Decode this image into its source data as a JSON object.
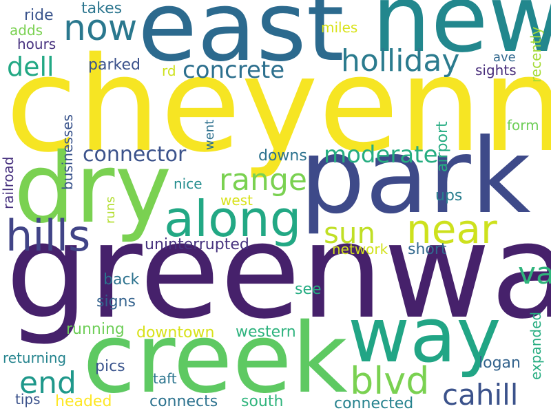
{
  "words": [
    {
      "text": "greenway",
      "color": "#46216b"
    },
    {
      "text": "cheyenne",
      "color": "#f6e523"
    },
    {
      "text": "park",
      "color": "#3e4a89"
    },
    {
      "text": "creek",
      "color": "#5ec962"
    },
    {
      "text": "east",
      "color": "#2c6a8e"
    },
    {
      "text": "new",
      "color": "#22878d"
    },
    {
      "text": "dry",
      "color": "#7ad151"
    },
    {
      "text": "way",
      "color": "#21a585"
    },
    {
      "text": "along",
      "color": "#22a884"
    },
    {
      "text": "hills",
      "color": "#414487"
    },
    {
      "text": "near",
      "color": "#cde11d"
    },
    {
      "text": "blvd",
      "color": "#7ad151"
    },
    {
      "text": "cahill",
      "color": "#3b528b"
    },
    {
      "text": "now",
      "color": "#2a788e"
    },
    {
      "text": "holliday",
      "color": "#2b7b8e"
    },
    {
      "text": "valley",
      "color": "#2fb47c"
    },
    {
      "text": "end",
      "color": "#1f988b"
    },
    {
      "text": "range",
      "color": "#7ad151"
    },
    {
      "text": "sun",
      "color": "#c0df25"
    },
    {
      "text": "concrete",
      "color": "#2d708e"
    },
    {
      "text": "moderate",
      "color": "#26ad81"
    },
    {
      "text": "dell",
      "color": "#22a884"
    },
    {
      "text": "connector",
      "color": "#3b528b"
    },
    {
      "text": "airport",
      "color": "#25ac82"
    },
    {
      "text": "expanded",
      "color": "#27ad81"
    },
    {
      "text": "recently",
      "color": "#a5db36"
    },
    {
      "text": "miles",
      "color": "#d8e219"
    },
    {
      "text": "ride",
      "color": "#3a548c"
    },
    {
      "text": "takes",
      "color": "#2b758e"
    },
    {
      "text": "adds",
      "color": "#7ad151"
    },
    {
      "text": "hours",
      "color": "#46307e"
    },
    {
      "text": "parked",
      "color": "#3b528b"
    },
    {
      "text": "rd",
      "color": "#cde11d"
    },
    {
      "text": "ave",
      "color": "#31688e"
    },
    {
      "text": "sights",
      "color": "#472c7a"
    },
    {
      "text": "form",
      "color": "#6ece58"
    },
    {
      "text": "went",
      "color": "#2d708e"
    },
    {
      "text": "downs",
      "color": "#2c728e"
    },
    {
      "text": "businesses",
      "color": "#3a548c"
    },
    {
      "text": "railroad",
      "color": "#46307e"
    },
    {
      "text": "nice",
      "color": "#228c8d"
    },
    {
      "text": "west",
      "color": "#d8e219"
    },
    {
      "text": "ups",
      "color": "#287d8e"
    },
    {
      "text": "runs",
      "color": "#b2dd2d"
    },
    {
      "text": "uninterrupted",
      "color": "#46327e"
    },
    {
      "text": "network",
      "color": "#d2e21b"
    },
    {
      "text": "short",
      "color": "#31688e"
    },
    {
      "text": "back",
      "color": "#2c728e"
    },
    {
      "text": "see",
      "color": "#25ac82"
    },
    {
      "text": "signs",
      "color": "#33628d"
    },
    {
      "text": "running",
      "color": "#6ece58"
    },
    {
      "text": "downtown",
      "color": "#d8e219"
    },
    {
      "text": "western",
      "color": "#2db27d"
    },
    {
      "text": "returning",
      "color": "#25848e"
    },
    {
      "text": "pics",
      "color": "#3a548c"
    },
    {
      "text": "logan",
      "color": "#33638d"
    },
    {
      "text": "taft",
      "color": "#2b748e"
    },
    {
      "text": "tips",
      "color": "#3b528b"
    },
    {
      "text": "headed",
      "color": "#fde725"
    },
    {
      "text": "connects",
      "color": "#2c728e"
    },
    {
      "text": "south",
      "color": "#2fb47c"
    },
    {
      "text": "connected",
      "color": "#26828e"
    }
  ]
}
